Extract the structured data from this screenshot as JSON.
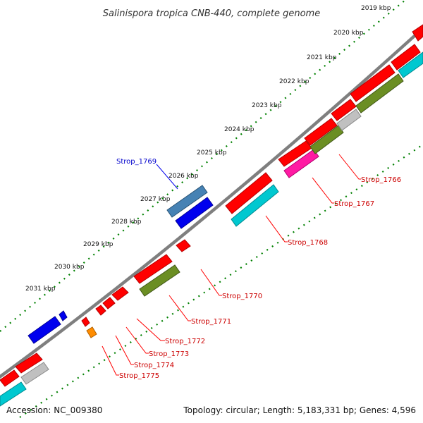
{
  "title": "Salinispora tropica CNB-440, complete genome",
  "footer": {
    "accession": "Accession: NC_009380",
    "summary": "Topology: circular; Length: 5,183,331 bp; Genes: 4,596"
  },
  "ticks": [
    "2019 kbp",
    "2020 kbp",
    "2021 kbp",
    "2022 kbp",
    "2023 kbp",
    "2024 kbp",
    "2025 kbp",
    "2026 kbp",
    "2027 kbp",
    "2028 kbp",
    "2029 kbp",
    "2030 kbp",
    "2031 kbp"
  ],
  "genes": {
    "strop_1766": "Strop_1766",
    "strop_1767": "Strop_1767",
    "strop_1768": "Strop_1768",
    "strop_1769": "Strop_1769",
    "strop_1770": "Strop_1770",
    "strop_1771": "Strop_1771",
    "strop_1772": "Strop_1772",
    "strop_1773": "Strop_1773",
    "strop_1774": "Strop_1774",
    "strop_1775": "Strop_1775"
  },
  "colors": {
    "cds": "#ff0000",
    "cds_reverse": "#0000ee",
    "label_forward": "#cc0000",
    "label_reverse": "#0000cc",
    "backbone": "#7f7f7f",
    "ticks": "#008000",
    "cyan": "#00c8d0",
    "olive": "#6b8e23",
    "magenta": "#ff1aa3",
    "steelblue": "#4682b4",
    "orange": "#ff8c00",
    "grey": "#c0c0c0"
  }
}
